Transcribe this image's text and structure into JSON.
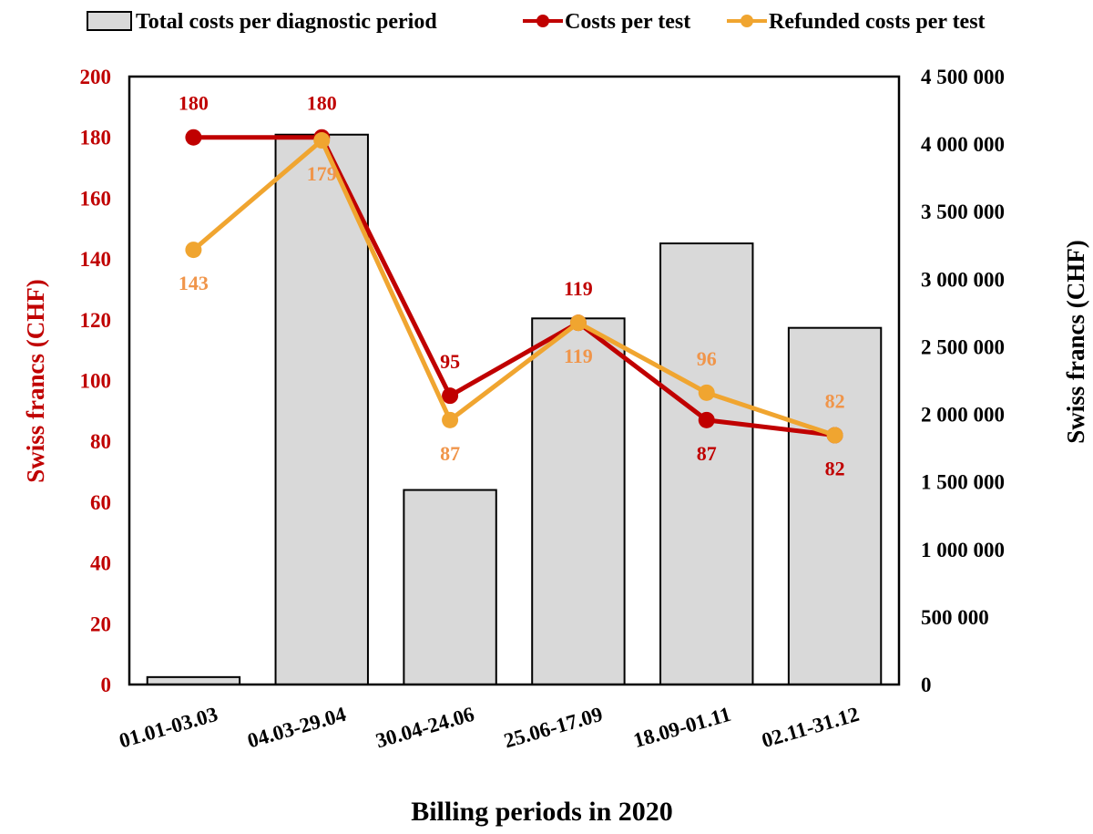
{
  "chart_data": {
    "type": "bar+line",
    "title": "",
    "xlabel": "Billing periods in 2020",
    "ylabel_left": "Swiss francs (CHF)",
    "ylabel_right": "Swiss francs (CHF)",
    "categories": [
      "01.01-03.03",
      "04.03-29.04",
      "30.04-24.06",
      "25.06-17.09",
      "18.09-01.11",
      "02.11-31.12"
    ],
    "ylim_left": [
      0,
      200
    ],
    "yticks_left": [
      0,
      20,
      40,
      60,
      80,
      100,
      120,
      140,
      160,
      180,
      200
    ],
    "ytick_labels_left": [
      "0",
      "20",
      "40",
      "60",
      "80",
      "100",
      "120",
      "140",
      "160",
      "180",
      "200"
    ],
    "ylim_right": [
      0,
      4500000
    ],
    "yticks_right": [
      0,
      500000,
      1000000,
      1500000,
      2000000,
      2500000,
      3000000,
      3500000,
      4000000,
      4500000
    ],
    "ytick_labels_right": [
      "0",
      "500 000",
      "1 000 000",
      "1 500 000",
      "2 000 000",
      "2 500 000",
      "3 000 000",
      "3 500 000",
      "4 000 000",
      "4 500 000"
    ],
    "grid": false,
    "legend_position": "top",
    "series": [
      {
        "name": "Total costs per diagnostic period",
        "kind": "bar",
        "axis": "right",
        "color": "#d9d9d9",
        "edge_color": "#000000",
        "values": [
          55000,
          4070000,
          1440000,
          2710000,
          3265000,
          2640000
        ]
      },
      {
        "name": "Costs per test",
        "kind": "line",
        "axis": "left",
        "color": "#c00000",
        "label_color": "#c00000",
        "values": [
          180,
          180,
          95,
          119,
          87,
          82
        ],
        "data_labels": [
          "180",
          "180",
          "95",
          "119",
          "87",
          "82"
        ],
        "label_positions": [
          "above",
          "above",
          "above",
          "above",
          "below",
          "below"
        ]
      },
      {
        "name": "Refunded costs per test",
        "kind": "line",
        "axis": "left",
        "color": "#f0a530",
        "label_color": "#f0954a",
        "values": [
          143,
          179,
          87,
          119,
          96,
          82
        ],
        "data_labels": [
          "143",
          "179",
          "87",
          "119",
          "96",
          "82"
        ],
        "label_positions": [
          "below",
          "below",
          "below",
          "below",
          "above",
          "above"
        ]
      }
    ]
  }
}
